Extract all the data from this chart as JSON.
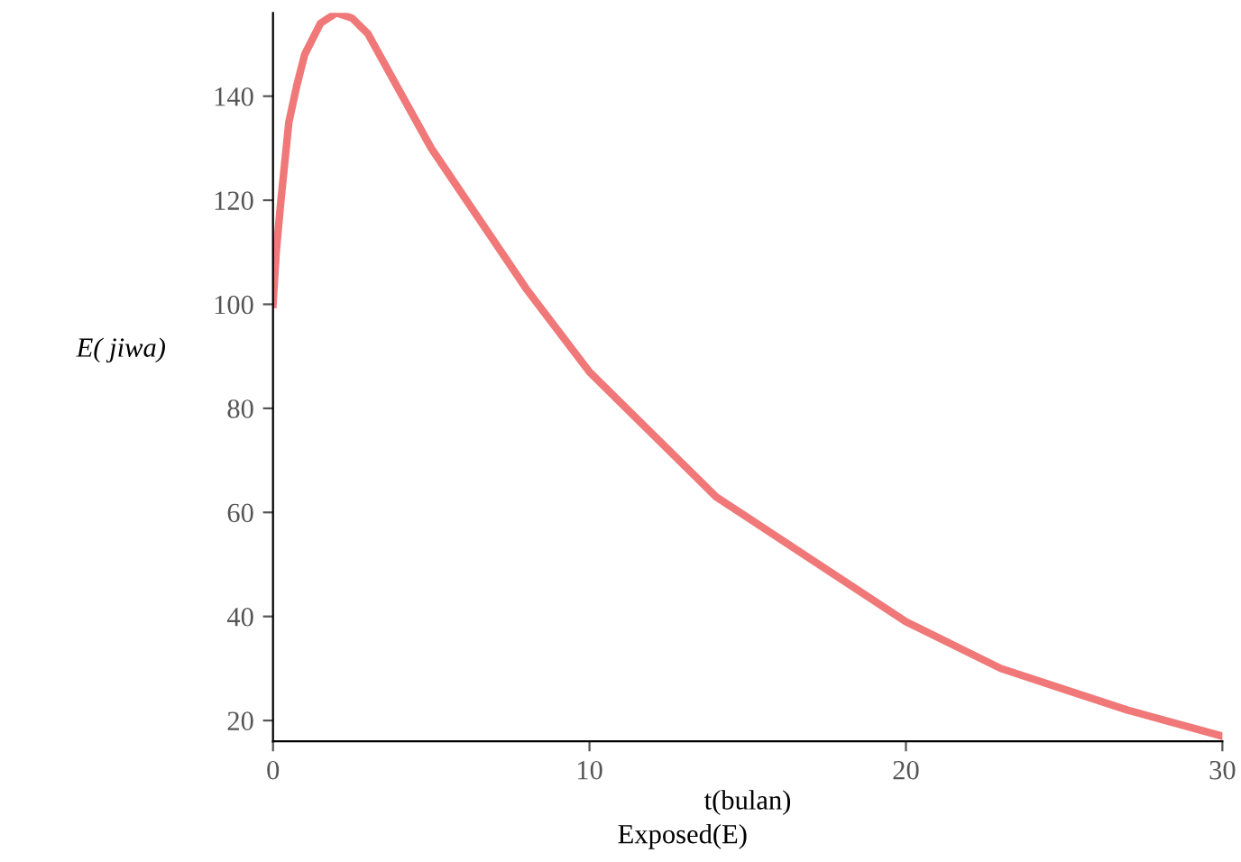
{
  "chart_data": {
    "type": "line",
    "title": "Exposed(E)",
    "xlabel": "t(bulan)",
    "ylabel": "E( jiwa)",
    "x": [
      0,
      0.1,
      0.25,
      0.5,
      0.75,
      1,
      1.5,
      2,
      2.5,
      3,
      4,
      5,
      6,
      8,
      10,
      12,
      14,
      15,
      17,
      20,
      23,
      25,
      27,
      30
    ],
    "series": [
      {
        "color": "#f07878",
        "values": [
          100,
          110,
          120,
          135,
          142,
          148,
          154,
          156,
          155,
          152,
          141,
          130,
          121,
          103,
          87,
          75,
          63,
          59,
          51,
          39,
          30,
          26,
          22,
          17
        ]
      }
    ],
    "xlim": [
      0,
      30
    ],
    "ylim": [
      16,
      156
    ],
    "xticks": [
      0,
      10,
      20,
      30
    ],
    "yticks": [
      20,
      40,
      60,
      80,
      100,
      120,
      140
    ],
    "grid": false,
    "legend": false,
    "marker": "none",
    "line_style": "solid"
  }
}
